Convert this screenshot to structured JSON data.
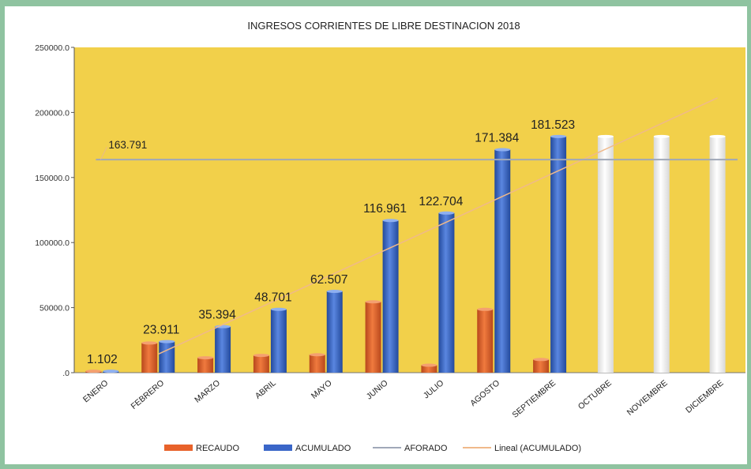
{
  "chart_data": {
    "type": "bar",
    "title": "INGRESOS CORRIENTES DE LIBRE DESTINACION 2018",
    "categories": [
      "ENERO",
      "FEBRERO",
      "MARZO",
      "ABRIL",
      "MAYO",
      "JUNIO",
      "JULIO",
      "AGOSTO",
      "SEPTIEMBRE",
      "OCTUBRE",
      "NOVIEMBRE",
      "DICIEMBRE"
    ],
    "y_ticks": [
      ".0",
      "50000.0",
      "100000.0",
      "150000.0",
      "200000.0",
      "250000.0"
    ],
    "ylim": [
      0,
      250000
    ],
    "series": [
      {
        "name": "RECAUDO",
        "type": "bar",
        "color": "#e8622a",
        "values": [
          1102,
          22809,
          11483,
          13307,
          13806,
          54454,
          5743,
          48680,
          10139,
          null,
          null,
          null
        ]
      },
      {
        "name": "ACUMULADO",
        "type": "bar",
        "color": "#3a66c8",
        "values": [
          1102,
          23911,
          35394,
          48701,
          62507,
          116961,
          122704,
          171384,
          181523,
          181523,
          181523,
          181523
        ]
      },
      {
        "name": "AFORADO",
        "type": "line",
        "color": "#a0a8b8",
        "values": [
          163791,
          163791,
          163791,
          163791,
          163791,
          163791,
          163791,
          163791,
          163791,
          163791,
          163791,
          163791
        ]
      },
      {
        "name": "Lineal (ACUMULADO)",
        "type": "trendline",
        "color": "#f0b98a",
        "values": [
          -5500,
          14200,
          33900,
          53600,
          73300,
          93000,
          112700,
          132400,
          152100,
          171800,
          191500,
          211200
        ]
      }
    ],
    "projected_bar_color": "#ffffff",
    "projected_from_index": 9,
    "data_labels": [
      "1.102",
      "23.911",
      "35.394",
      "48.701",
      "62.507",
      "116.961",
      "122.704",
      "171.384",
      "181.523"
    ],
    "aforado_label": "163.791",
    "plot_background": "#f2d04a",
    "legend_position": "bottom"
  }
}
